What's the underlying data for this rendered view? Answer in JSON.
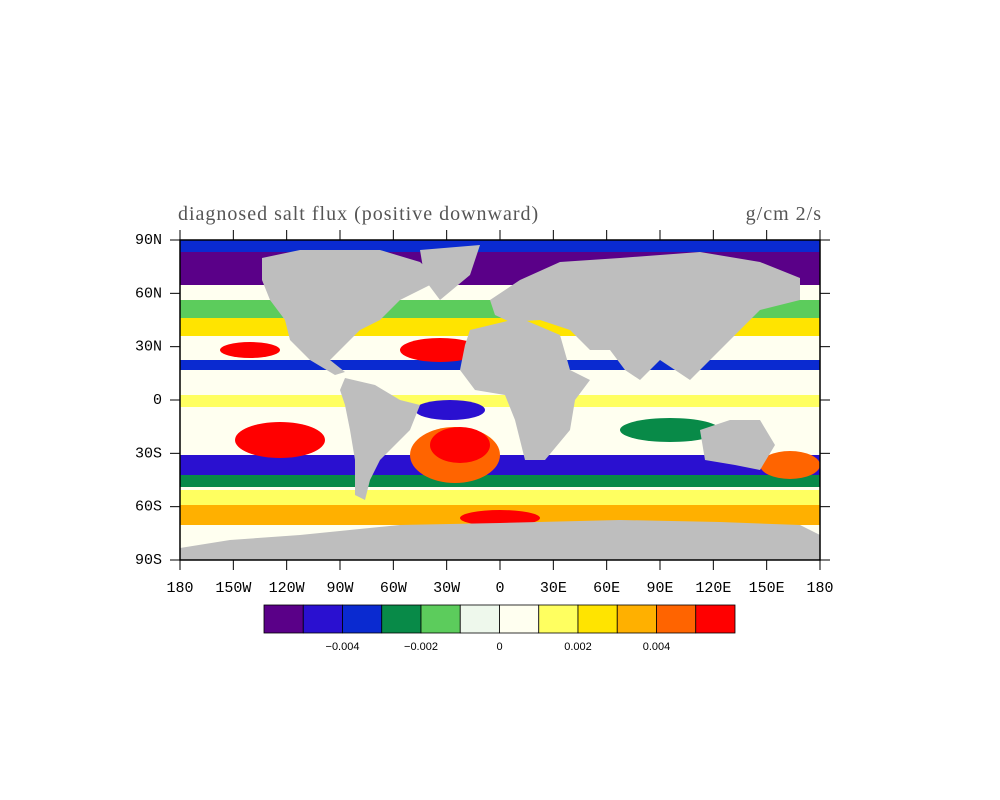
{
  "title": "diagnosed salt flux (positive downward)",
  "units": "g/cm 2/s",
  "lon_extent": [
    -180,
    180
  ],
  "lat_extent": [
    -90,
    90
  ],
  "lat_ticks": [
    {
      "value": 90,
      "label": "90N"
    },
    {
      "value": 60,
      "label": "60N"
    },
    {
      "value": 30,
      "label": "30N"
    },
    0,
    {
      "value": -30,
      "label": "30S"
    },
    {
      "value": -60,
      "label": "60S"
    },
    {
      "value": -90,
      "label": "90S"
    }
  ],
  "lon_ticks": [
    {
      "value": -180,
      "label": "180"
    },
    {
      "value": -150,
      "label": "150W"
    },
    {
      "value": -120,
      "label": "120W"
    },
    {
      "value": -90,
      "label": "90W"
    },
    {
      "value": -60,
      "label": "60W"
    },
    {
      "value": -30,
      "label": "30W"
    },
    0,
    {
      "value": 30,
      "label": "30E"
    },
    {
      "value": 60,
      "label": "60E"
    },
    {
      "value": 90,
      "label": "90E"
    },
    {
      "value": 120,
      "label": "120E"
    },
    {
      "value": 150,
      "label": "150E"
    },
    {
      "value": 180,
      "label": "180"
    }
  ],
  "colorbar": {
    "colors": [
      "#5a0088",
      "#2a10d0",
      "#0a2ad0",
      "#088a48",
      "#5ccc5c",
      "#eef8ec",
      "#fffff0",
      "#ffff60",
      "#ffe400",
      "#ffb000",
      "#ff6400",
      "#ff0000"
    ],
    "levels": [
      -0.005,
      -0.004,
      -0.003,
      -0.002,
      -0.001,
      0,
      0.001,
      0.002,
      0.003,
      0.004,
      0.005
    ],
    "labels": [
      {
        "value": -0.004,
        "label": "−0.004"
      },
      {
        "value": -0.002,
        "label": "−0.002"
      },
      0,
      {
        "value": 0.002,
        "label": "0.002"
      },
      {
        "value": 0.004,
        "label": "0.004"
      }
    ]
  }
}
